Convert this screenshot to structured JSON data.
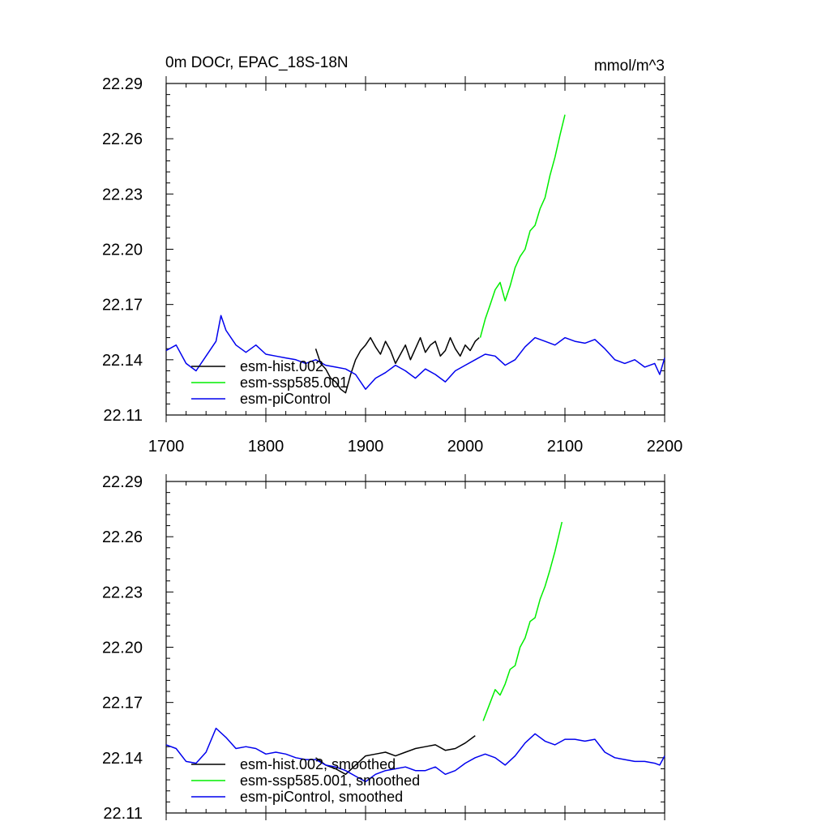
{
  "chart_data": [
    {
      "type": "line",
      "title_left": "0m DOCr, EPAC_18S-18N",
      "title_right": "mmol/m^3",
      "xlim": [
        1700,
        2200
      ],
      "ylim": [
        22.11,
        22.29
      ],
      "x_ticks": [
        "1700",
        "1800",
        "1900",
        "2000",
        "2100",
        "2200"
      ],
      "y_ticks": [
        "22.29",
        "22.26",
        "22.23",
        "22.20",
        "22.17",
        "22.14",
        "22.11"
      ],
      "grid": false,
      "legend_position": "bottom-left",
      "series": [
        {
          "name": "esm-hist.002",
          "color": "#000000",
          "x": [
            1850,
            1855,
            1860,
            1865,
            1870,
            1875,
            1880,
            1885,
            1890,
            1895,
            1900,
            1905,
            1910,
            1915,
            1920,
            1925,
            1930,
            1935,
            1940,
            1945,
            1950,
            1955,
            1960,
            1965,
            1970,
            1975,
            1980,
            1985,
            1990,
            1995,
            2000,
            2005,
            2010,
            2014
          ],
          "values": [
            22.146,
            22.138,
            22.135,
            22.13,
            22.128,
            22.124,
            22.122,
            22.132,
            22.14,
            22.145,
            22.148,
            22.152,
            22.147,
            22.143,
            22.15,
            22.145,
            22.138,
            22.143,
            22.148,
            22.14,
            22.146,
            22.152,
            22.144,
            22.148,
            22.15,
            22.142,
            22.145,
            22.152,
            22.146,
            22.142,
            22.148,
            22.145,
            22.15,
            22.152
          ]
        },
        {
          "name": "esm-ssp585.001",
          "color": "#00ee00",
          "x": [
            2015,
            2020,
            2025,
            2030,
            2035,
            2040,
            2045,
            2050,
            2055,
            2060,
            2065,
            2070,
            2075,
            2080,
            2085,
            2090,
            2095,
            2100
          ],
          "values": [
            22.152,
            22.162,
            22.17,
            22.178,
            22.182,
            22.172,
            22.18,
            22.19,
            22.196,
            22.2,
            22.21,
            22.213,
            22.222,
            22.228,
            22.24,
            22.25,
            22.262,
            22.273
          ]
        },
        {
          "name": "esm-piControl",
          "color": "#0000ee",
          "x": [
            1700,
            1710,
            1720,
            1730,
            1740,
            1750,
            1755,
            1760,
            1770,
            1780,
            1790,
            1800,
            1810,
            1820,
            1830,
            1840,
            1850,
            1860,
            1870,
            1880,
            1890,
            1900,
            1910,
            1920,
            1930,
            1940,
            1950,
            1960,
            1970,
            1980,
            1990,
            2000,
            2010,
            2020,
            2030,
            2040,
            2050,
            2060,
            2070,
            2080,
            2090,
            2100,
            2110,
            2120,
            2130,
            2140,
            2150,
            2160,
            2170,
            2180,
            2190,
            2195,
            2200
          ],
          "values": [
            22.145,
            22.148,
            22.138,
            22.134,
            22.142,
            22.15,
            22.164,
            22.156,
            22.148,
            22.144,
            22.148,
            22.143,
            22.142,
            22.141,
            22.14,
            22.138,
            22.14,
            22.137,
            22.136,
            22.135,
            22.132,
            22.124,
            22.13,
            22.133,
            22.137,
            22.134,
            22.13,
            22.135,
            22.132,
            22.128,
            22.134,
            22.137,
            22.14,
            22.143,
            22.142,
            22.137,
            22.14,
            22.147,
            22.152,
            22.15,
            22.148,
            22.152,
            22.15,
            22.149,
            22.151,
            22.146,
            22.14,
            22.138,
            22.14,
            22.136,
            22.138,
            22.132,
            22.141
          ]
        }
      ]
    },
    {
      "type": "line",
      "xlim": [
        1700,
        2200
      ],
      "ylim": [
        22.11,
        22.29
      ],
      "y_ticks": [
        "22.29",
        "22.26",
        "22.23",
        "22.20",
        "22.17",
        "22.14",
        "22.11"
      ],
      "grid": false,
      "legend_position": "bottom-left",
      "series": [
        {
          "name": "esm-hist.002, smoothed",
          "color": "#000000",
          "x": [
            1850,
            1860,
            1870,
            1880,
            1890,
            1900,
            1910,
            1920,
            1930,
            1940,
            1950,
            1960,
            1970,
            1980,
            1990,
            2000,
            2010
          ],
          "values": [
            22.14,
            22.136,
            22.134,
            22.131,
            22.136,
            22.141,
            22.142,
            22.143,
            22.141,
            22.143,
            22.145,
            22.146,
            22.147,
            22.144,
            22.145,
            22.148,
            22.152
          ]
        },
        {
          "name": "esm-ssp585.001, smoothed",
          "color": "#00ee00",
          "x": [
            2018,
            2025,
            2030,
            2035,
            2040,
            2045,
            2050,
            2055,
            2060,
            2065,
            2070,
            2075,
            2080,
            2085,
            2090,
            2097
          ],
          "values": [
            22.16,
            22.17,
            22.177,
            22.174,
            22.18,
            22.188,
            22.19,
            22.2,
            22.205,
            22.214,
            22.216,
            22.226,
            22.233,
            22.242,
            22.252,
            22.268
          ]
        },
        {
          "name": "esm-piControl, smoothed",
          "color": "#0000ee",
          "x": [
            1700,
            1710,
            1720,
            1730,
            1740,
            1750,
            1760,
            1770,
            1780,
            1790,
            1800,
            1810,
            1820,
            1830,
            1840,
            1850,
            1860,
            1870,
            1880,
            1890,
            1900,
            1910,
            1920,
            1930,
            1940,
            1950,
            1960,
            1970,
            1980,
            1990,
            2000,
            2010,
            2020,
            2030,
            2040,
            2050,
            2060,
            2070,
            2080,
            2090,
            2100,
            2110,
            2120,
            2130,
            2140,
            2150,
            2160,
            2170,
            2180,
            2190,
            2195,
            2200
          ],
          "values": [
            22.147,
            22.145,
            22.138,
            22.137,
            22.143,
            22.156,
            22.151,
            22.145,
            22.146,
            22.145,
            22.142,
            22.143,
            22.142,
            22.14,
            22.139,
            22.139,
            22.136,
            22.135,
            22.133,
            22.13,
            22.127,
            22.131,
            22.133,
            22.134,
            22.135,
            22.133,
            22.133,
            22.135,
            22.131,
            22.133,
            22.137,
            22.14,
            22.142,
            22.14,
            22.136,
            22.141,
            22.148,
            22.153,
            22.149,
            22.147,
            22.15,
            22.15,
            22.149,
            22.15,
            22.143,
            22.14,
            22.139,
            22.138,
            22.138,
            22.137,
            22.136,
            22.141
          ]
        }
      ]
    }
  ]
}
